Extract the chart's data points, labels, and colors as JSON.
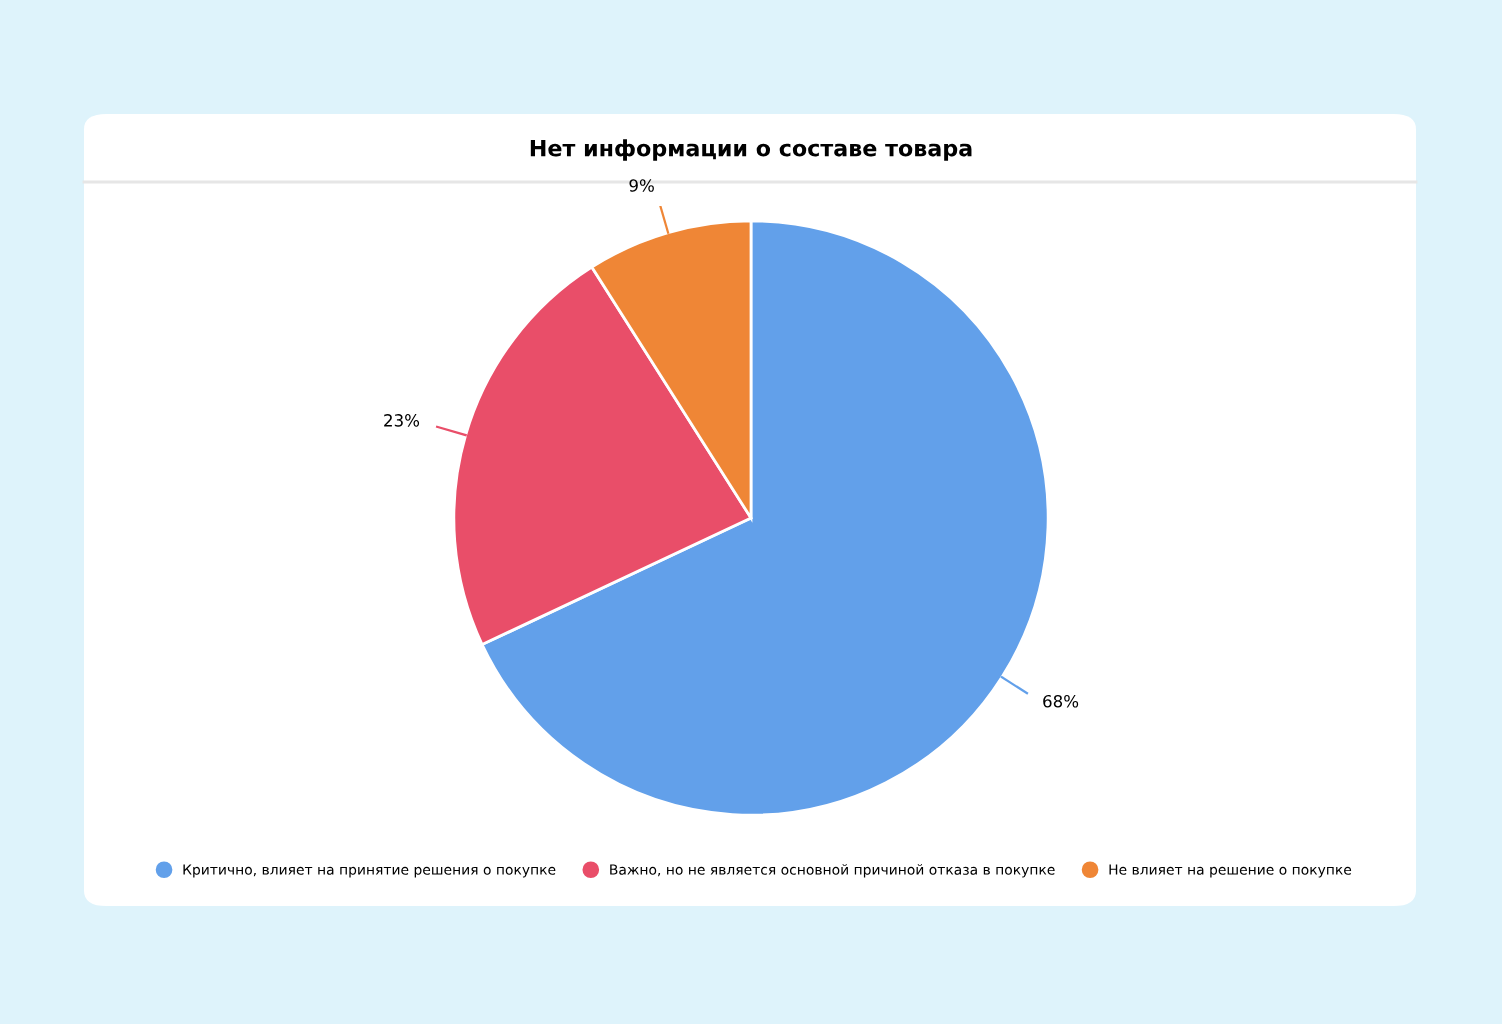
{
  "chart_data": {
    "type": "pie",
    "title": "Нет информации о составе товара",
    "categories": [
      "Критично, влияет на принятие решения о покупке",
      "Важно, но не является основной причиной отказа в покупке",
      "Не влияет на решение о покупке"
    ],
    "values": [
      68,
      23,
      9
    ],
    "value_labels": [
      "68%",
      "23%",
      "9%"
    ],
    "colors": [
      "#62a0ea",
      "#e94e69",
      "#ef8636"
    ],
    "legend": "bottom"
  }
}
